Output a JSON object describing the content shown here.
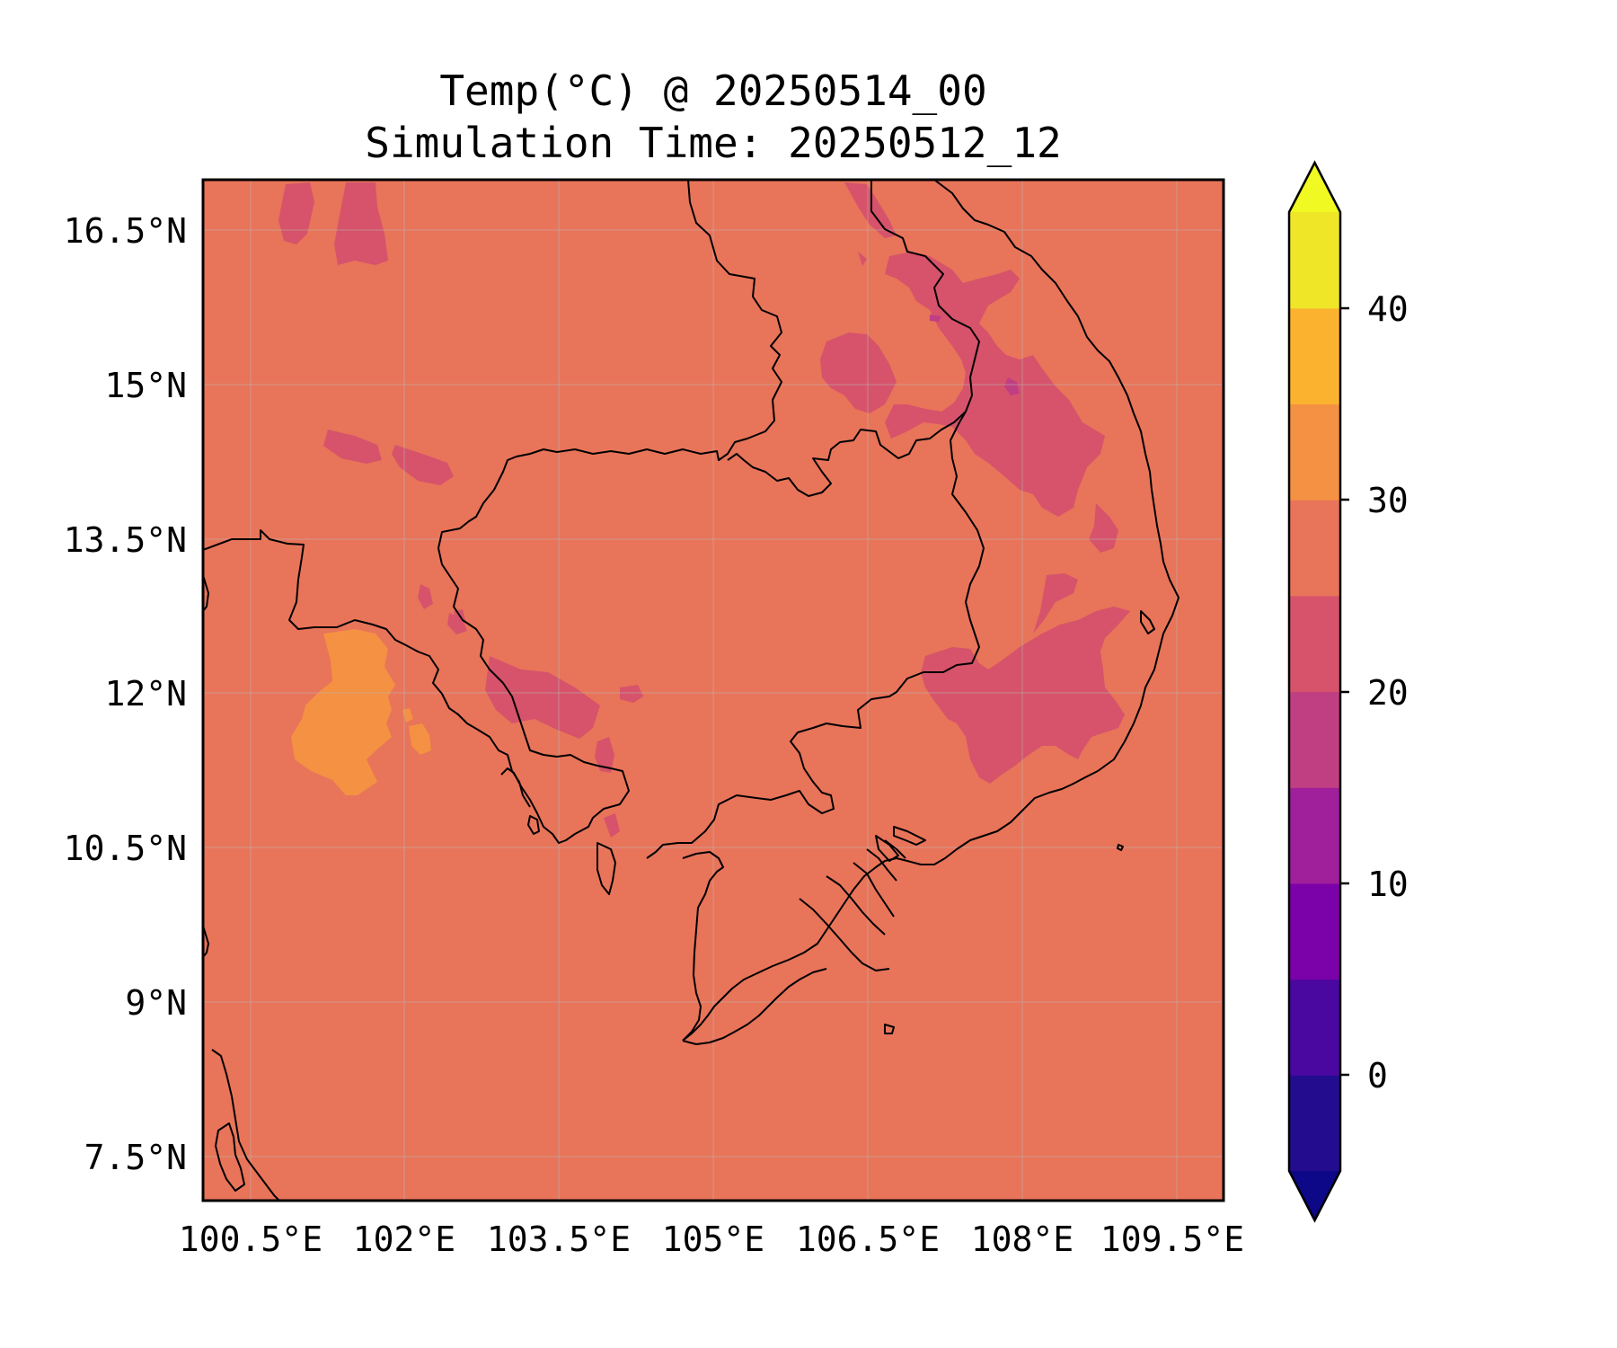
{
  "title": {
    "line1": "Temp(°C) @ 20250514_00",
    "line2": "Simulation Time: 20250512_12"
  },
  "map": {
    "x_ticks": [
      "100.5°E",
      "102°E",
      "103.5°E",
      "105°E",
      "106.5°E",
      "108°E",
      "109.5°E"
    ],
    "y_ticks": [
      "16.5°N",
      "15°N",
      "13.5°N",
      "12°N",
      "10.5°N",
      "9°N",
      "7.5°N"
    ],
    "background_color": "#e8745a",
    "gridlines": true
  },
  "colorbar": {
    "ticks": [
      "40",
      "30",
      "20",
      "10",
      "0"
    ],
    "levels": [
      -5,
      0,
      5,
      10,
      15,
      20,
      25,
      30,
      35,
      40,
      45
    ],
    "colors": [
      "#230d8e",
      "#4a08a0",
      "#7a02a8",
      "#a01f9a",
      "#c03f83",
      "#d6536b",
      "#e8745a",
      "#f59142",
      "#fbb32f",
      "#f0e628"
    ],
    "extend_low_color": "#0d0887",
    "extend_high_color": "#f0f921"
  },
  "chart_data": {
    "type": "heatmap",
    "title": "Temp(°C) @ 20250514_00\nSimulation Time: 20250512_12",
    "variable": "Temp(°C)",
    "valid_time": "20250514_00",
    "simulation_time": "20250512_12",
    "lon_range": [
      100.5,
      110.4
    ],
    "lat_range": [
      7.1,
      17.0
    ],
    "color_levels": [
      -5,
      0,
      5,
      10,
      15,
      20,
      25,
      30,
      35,
      40,
      45
    ],
    "dominant_range": [
      25,
      30
    ],
    "warm_region_range": [
      30,
      35
    ],
    "cool_region_range": [
      20,
      25
    ],
    "min_region_range": [
      15,
      20
    ]
  }
}
